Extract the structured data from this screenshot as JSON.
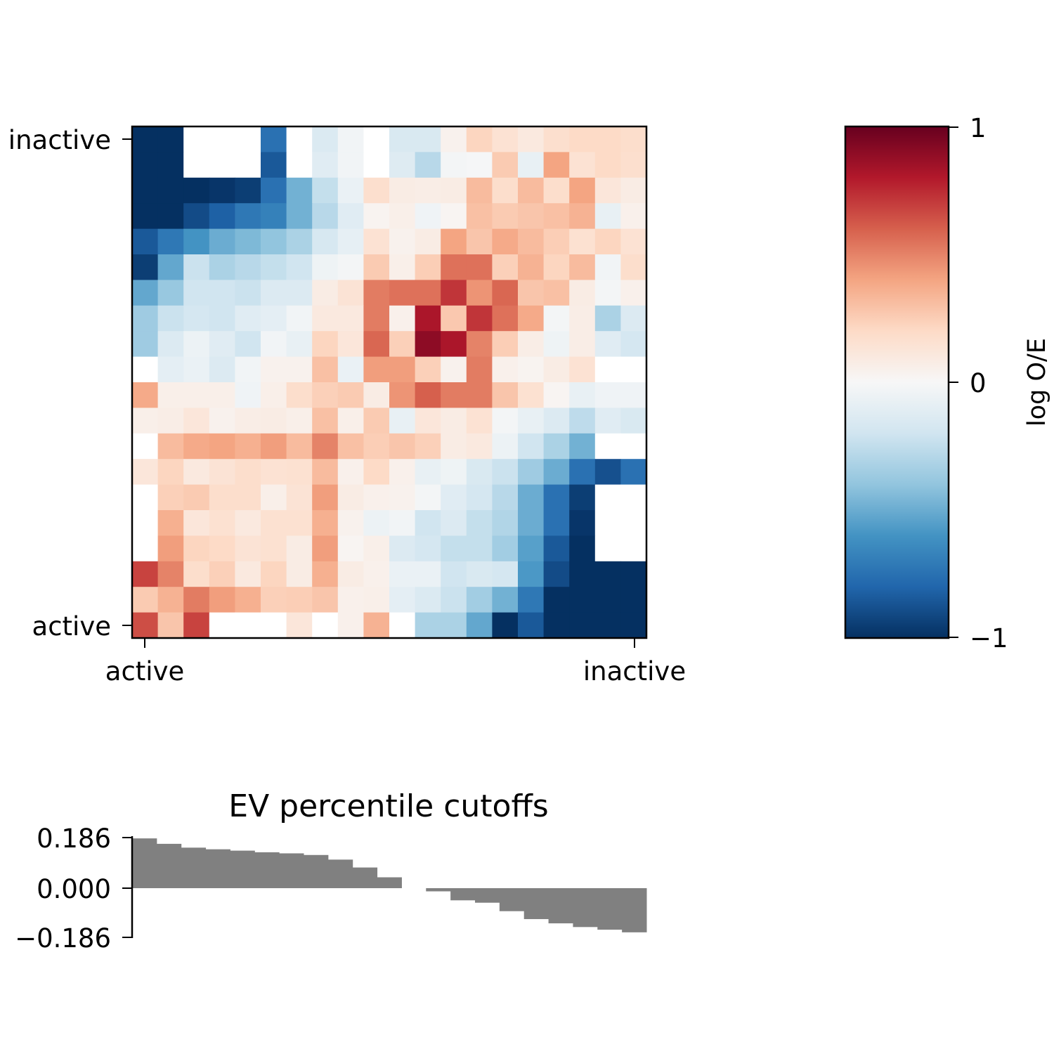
{
  "chart_data": [
    {
      "type": "heatmap",
      "xticks": [
        "active",
        "inactive"
      ],
      "yticks": [
        "inactive",
        "active"
      ],
      "colorbar": {
        "label": "log O/E",
        "ticks": [
          "1",
          "0",
          "−1"
        ],
        "vmin": -1,
        "vmax": 1,
        "colormap": "RdBu_r"
      },
      "missing_color": "#ffffff",
      "values": [
        [
          -1,
          -1,
          null,
          null,
          null,
          -0.75,
          null,
          -0.15,
          -0.03,
          null,
          -0.16,
          -0.16,
          0.04,
          0.22,
          0.15,
          0.1,
          0.17,
          0.2,
          0.2,
          0.18
        ],
        [
          -1,
          -1,
          null,
          null,
          null,
          -0.85,
          null,
          -0.12,
          -0.03,
          null,
          -0.13,
          -0.28,
          -0.02,
          -0.01,
          0.26,
          -0.08,
          0.4,
          0.15,
          0.2,
          0.17
        ],
        [
          -1,
          -1,
          -1,
          -0.98,
          -0.95,
          -0.75,
          -0.48,
          -0.24,
          -0.07,
          0.17,
          0.08,
          0.07,
          0.08,
          0.32,
          0.18,
          0.32,
          0.18,
          0.4,
          0.12,
          0.08
        ],
        [
          -1,
          -1,
          -0.9,
          -0.82,
          -0.72,
          -0.68,
          -0.48,
          -0.28,
          -0.12,
          0.03,
          0.06,
          -0.04,
          0.02,
          0.3,
          0.26,
          0.28,
          0.3,
          0.35,
          -0.08,
          0.05
        ],
        [
          -0.85,
          -0.72,
          -0.6,
          -0.5,
          -0.45,
          -0.4,
          -0.32,
          -0.17,
          -0.09,
          0.15,
          0.04,
          0.08,
          0.4,
          0.28,
          0.38,
          0.32,
          0.25,
          0.16,
          0.22,
          0.15
        ],
        [
          -0.95,
          -0.52,
          -0.22,
          -0.32,
          -0.28,
          -0.24,
          -0.2,
          -0.05,
          -0.02,
          0.26,
          0.06,
          0.25,
          0.55,
          0.55,
          0.24,
          0.35,
          0.22,
          0.32,
          -0.03,
          0.18
        ],
        [
          -0.52,
          -0.38,
          -0.2,
          -0.2,
          -0.22,
          -0.14,
          -0.14,
          0.08,
          0.14,
          0.52,
          0.55,
          0.55,
          0.72,
          0.45,
          0.58,
          0.28,
          0.3,
          0.08,
          -0.02,
          0.05
        ],
        [
          -0.36,
          -0.22,
          -0.18,
          -0.2,
          -0.12,
          -0.1,
          -0.03,
          0.1,
          0.1,
          0.52,
          0.05,
          0.82,
          0.27,
          0.72,
          0.55,
          0.38,
          -0.02,
          0.07,
          -0.32,
          -0.14
        ],
        [
          -0.36,
          -0.14,
          -0.06,
          -0.12,
          -0.2,
          -0.03,
          -0.08,
          0.22,
          0.12,
          0.58,
          0.24,
          0.9,
          0.82,
          0.5,
          0.25,
          0.07,
          -0.05,
          0.07,
          -0.12,
          -0.18
        ],
        [
          null,
          -0.1,
          -0.07,
          -0.14,
          -0.03,
          0.04,
          0.04,
          0.3,
          -0.07,
          0.42,
          0.42,
          0.24,
          0.04,
          0.52,
          0.05,
          0.03,
          0.08,
          0.15,
          null,
          null
        ],
        [
          0.38,
          0.06,
          0.06,
          0.06,
          -0.04,
          0.06,
          0.18,
          0.24,
          0.26,
          0.08,
          0.45,
          0.6,
          0.52,
          0.52,
          0.28,
          0.16,
          0.02,
          -0.08,
          -0.04,
          -0.04
        ],
        [
          0.06,
          0.07,
          0.12,
          0.04,
          0.07,
          0.08,
          0.06,
          0.3,
          0.06,
          0.26,
          -0.08,
          0.12,
          0.08,
          0.15,
          -0.02,
          -0.08,
          -0.14,
          -0.26,
          -0.12,
          -0.16
        ],
        [
          null,
          0.32,
          0.38,
          0.4,
          0.36,
          0.42,
          0.32,
          0.5,
          0.3,
          0.25,
          0.28,
          0.24,
          0.08,
          0.1,
          -0.06,
          -0.2,
          -0.32,
          -0.48,
          null,
          null
        ],
        [
          0.12,
          0.22,
          0.1,
          0.14,
          0.18,
          0.15,
          0.16,
          0.32,
          0.05,
          0.2,
          0.05,
          -0.08,
          -0.05,
          -0.16,
          -0.22,
          -0.36,
          -0.5,
          -0.75,
          -0.88,
          -0.75
        ],
        [
          null,
          0.24,
          0.26,
          0.18,
          0.18,
          0.06,
          0.14,
          0.42,
          0.08,
          0.05,
          0.04,
          -0.02,
          -0.12,
          -0.18,
          -0.28,
          -0.5,
          -0.75,
          -0.95,
          null,
          null
        ],
        [
          null,
          0.36,
          0.12,
          0.16,
          0.1,
          0.16,
          0.16,
          0.36,
          0.04,
          -0.06,
          -0.03,
          -0.2,
          -0.14,
          -0.24,
          -0.3,
          -0.5,
          -0.75,
          -0.98,
          null,
          null
        ],
        [
          null,
          0.42,
          0.22,
          0.2,
          0.14,
          0.16,
          0.08,
          0.42,
          0.02,
          0.06,
          -0.14,
          -0.18,
          -0.24,
          -0.24,
          -0.35,
          -0.55,
          -0.85,
          -1,
          null,
          null
        ],
        [
          0.68,
          0.5,
          0.18,
          0.24,
          0.1,
          0.22,
          0.08,
          0.36,
          0.08,
          0.05,
          -0.07,
          -0.07,
          -0.2,
          -0.16,
          -0.18,
          -0.58,
          -0.9,
          -1,
          -1,
          -1
        ],
        [
          0.26,
          0.35,
          0.52,
          0.42,
          0.36,
          0.24,
          0.25,
          0.28,
          0.05,
          0.06,
          -0.1,
          -0.15,
          -0.22,
          -0.35,
          -0.48,
          -0.72,
          -1,
          -1,
          -1,
          -1
        ],
        [
          0.65,
          0.28,
          0.68,
          null,
          null,
          null,
          0.12,
          null,
          0.05,
          0.35,
          null,
          -0.32,
          -0.32,
          -0.52,
          -1,
          -0.85,
          -1,
          -1,
          -1,
          -1
        ]
      ]
    },
    {
      "type": "bar",
      "title": "EV percentile cutoffs",
      "yticks": [
        "0.186",
        "0.000",
        "−0.186"
      ],
      "ylim": [
        -0.186,
        0.186
      ],
      "bar_color": "#808080",
      "values": [
        0.183,
        0.163,
        0.149,
        0.143,
        0.138,
        0.132,
        0.128,
        0.122,
        0.105,
        0.076,
        0.04,
        0.0,
        -0.012,
        -0.046,
        -0.055,
        -0.087,
        -0.117,
        -0.133,
        -0.147,
        -0.157,
        -0.167
      ]
    }
  ]
}
